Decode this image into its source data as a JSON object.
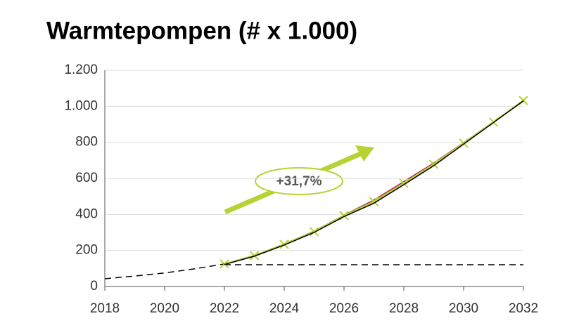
{
  "chart_data": {
    "type": "line",
    "title": "Warmtepompen (# x 1.000)",
    "x": [
      2018,
      2019,
      2020,
      2021,
      2022,
      2023,
      2024,
      2025,
      2026,
      2027,
      2028,
      2029,
      2030,
      2031,
      2032
    ],
    "series": [
      {
        "color": "#000000",
        "dash": true,
        "values": [
          43,
          58,
          75,
          98,
          125,
          null,
          null,
          null,
          null,
          null,
          null,
          null,
          null,
          null,
          null
        ]
      },
      {
        "color": "#000000",
        "dash": true,
        "values": [
          null,
          null,
          null,
          null,
          121,
          121,
          121,
          121,
          121,
          121,
          121,
          121,
          121,
          121,
          121
        ]
      },
      {
        "color": "#c2185b",
        "values": [
          null,
          null,
          null,
          null,
          125,
          172,
          236,
          307,
          396,
          480,
          582,
          685,
          798,
          914,
          1032
        ]
      },
      {
        "color": "#b5d334",
        "marker": "x",
        "values": [
          null,
          null,
          null,
          null,
          125,
          171,
          234,
          304,
          393,
          471,
          573,
          678,
          795,
          912,
          1032
        ]
      },
      {
        "color": "#000000",
        "values": [
          null,
          null,
          null,
          null,
          122,
          168,
          230,
          300,
          388,
          462,
          565,
          670,
          790,
          910,
          1030
        ]
      }
    ],
    "xlim": [
      2018,
      2032
    ],
    "xticks": [
      2018,
      2020,
      2022,
      2024,
      2026,
      2028,
      2030,
      2032
    ],
    "ylim": [
      0,
      1200
    ],
    "yticks": [
      0,
      200,
      400,
      600,
      800,
      {
        "value": 1000,
        "label": "1.000"
      },
      {
        "value": 1200,
        "label": "1.200"
      }
    ],
    "grid": true,
    "annotation": "+31,7%"
  }
}
